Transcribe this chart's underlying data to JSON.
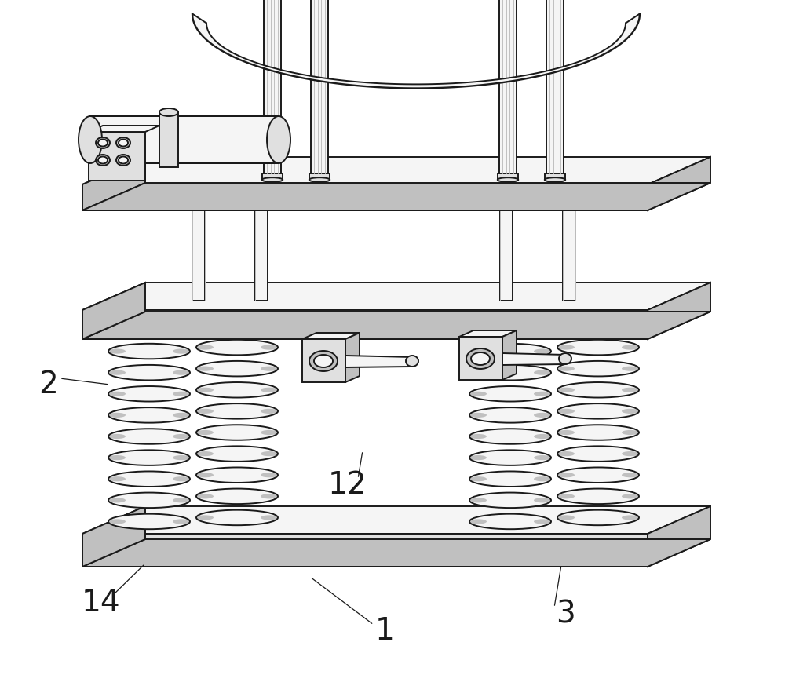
{
  "bg_color": "#ffffff",
  "lc": "#1a1a1a",
  "fl": "#f5f5f5",
  "fm": "#e0e0e0",
  "fd": "#c0c0c0",
  "lw": 1.4,
  "label_fs": 28,
  "figsize": [
    10.0,
    8.6
  ],
  "dpi": 100
}
